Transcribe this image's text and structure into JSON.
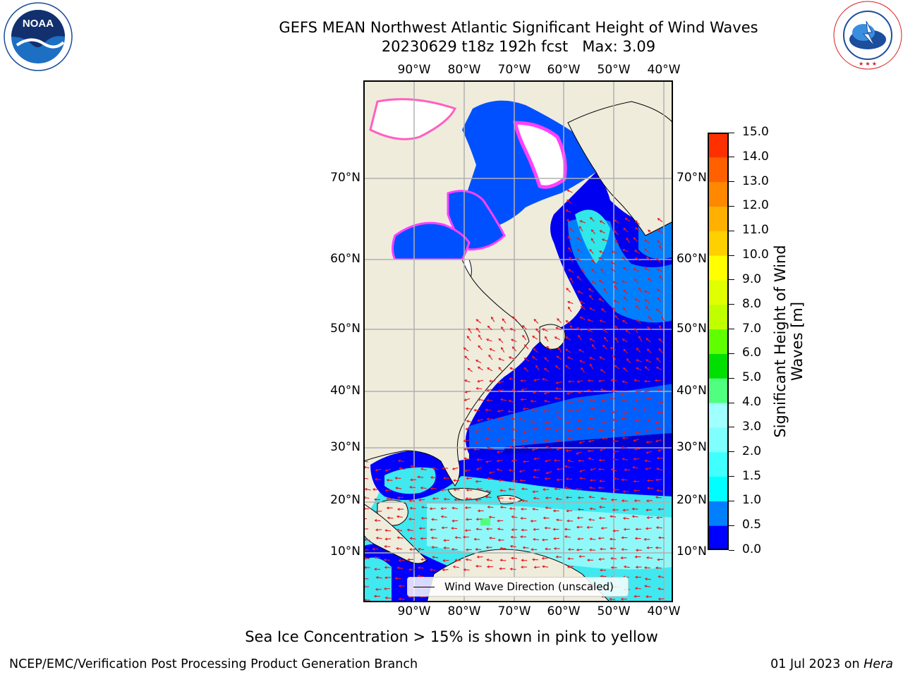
{
  "header": {
    "title": "GEFS MEAN Northwest Atlantic Significant Height of Wind Waves",
    "subtitle": "20230629 t18z 192h fcst   Max: 3.09"
  },
  "logos": {
    "noaa_text": "NOAA",
    "noaa_ring": "NATIONAL OCEANIC AND ATMOSPHERIC ADMINISTRATION · U.S. DEPARTMENT OF COMMERCE",
    "nws_ring": "NATIONAL WEATHER SERVICE"
  },
  "map": {
    "lon_labels": [
      "90°W",
      "80°W",
      "70°W",
      "60°W",
      "50°W",
      "40°W"
    ],
    "lat_labels": [
      "70°N",
      "60°N",
      "50°N",
      "40°N",
      "30°N",
      "20°N",
      "10°N"
    ],
    "legend_label": "Wind Wave Direction (unscaled)",
    "colors": {
      "land": "#efecdc",
      "ice": "#ffffff",
      "arrow": "#e8191e",
      "grid": "#b0b0b0"
    }
  },
  "colorbar": {
    "label": "Significant Height of Wind Waves [m]",
    "ticks": [
      "0.0",
      "0.5",
      "1.0",
      "1.5",
      "2.0",
      "3.0",
      "4.0",
      "5.0",
      "6.0",
      "7.0",
      "8.0",
      "9.0",
      "10.0",
      "11.0",
      "12.0",
      "13.0",
      "14.0",
      "15.0"
    ],
    "colors": [
      "#0000ff",
      "#0080ff",
      "#00ffff",
      "#40ffff",
      "#80ffff",
      "#a0ffff",
      "#50ff80",
      "#00e000",
      "#60ff00",
      "#c0ff00",
      "#e0ff00",
      "#ffff00",
      "#ffd000",
      "#ffb000",
      "#ff8800",
      "#ff6000",
      "#ff3000",
      "#ff0000"
    ]
  },
  "footer": {
    "sea_ice_note": "Sea Ice Concentration > 15% is shown in pink to yellow",
    "left": "NCEP/EMC/Verification Post Processing Product Generation Branch",
    "right_prefix": "01 Jul 2023 on ",
    "right_host": "Hera"
  }
}
